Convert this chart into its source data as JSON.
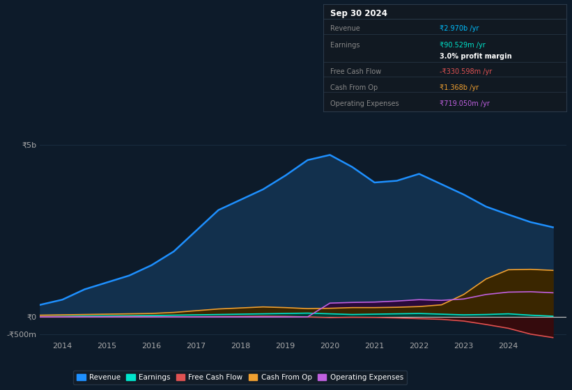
{
  "bg_color": "#0d1b2a",
  "plot_bg_color": "#0d1b2a",
  "info_box": {
    "title": "Sep 30 2024",
    "rows": [
      {
        "label": "Revenue",
        "value": "₹2.970b /yr",
        "value_color": "#00bfff"
      },
      {
        "label": "Earnings",
        "value": "₹90.529m /yr",
        "value_color": "#00e5cc"
      },
      {
        "label": "",
        "value": "3.0% profit margin",
        "value_color": "#ffffff",
        "bold": true
      },
      {
        "label": "Free Cash Flow",
        "value": "-₹330.598m /yr",
        "value_color": "#e05252"
      },
      {
        "label": "Cash From Op",
        "value": "₹1.368b /yr",
        "value_color": "#f0a030"
      },
      {
        "label": "Operating Expenses",
        "value": "₹719.050m /yr",
        "value_color": "#c060e0"
      }
    ]
  },
  "ylim": [
    -650000000.0,
    5800000000.0
  ],
  "yticks": [
    -500000000.0,
    0,
    5000000000.0
  ],
  "ytick_labels": [
    "-₹500m",
    "₹0",
    "₹5b"
  ],
  "xlim_start": 2013.5,
  "xlim_end": 2025.3,
  "xticks": [
    2014,
    2015,
    2016,
    2017,
    2018,
    2019,
    2020,
    2021,
    2022,
    2023,
    2024
  ],
  "revenue_color": "#1e90ff",
  "revenue_fill": "#12304d",
  "earnings_color": "#00e5cc",
  "earnings_fill": "#003d33",
  "fcf_color": "#e05252",
  "cashop_color": "#f0a030",
  "cashop_fill": "#3a2600",
  "opex_color": "#c060e0",
  "opex_fill": "#2a0a3a",
  "legend_labels": [
    "Revenue",
    "Earnings",
    "Free Cash Flow",
    "Cash From Op",
    "Operating Expenses"
  ],
  "legend_colors": [
    "#1e90ff",
    "#00e5cc",
    "#e05252",
    "#f0a030",
    "#c060e0"
  ],
  "grid_color": "#1a2d3f",
  "text_color": "#aaaaaa",
  "years": [
    2013.5,
    2014.0,
    2014.5,
    2015.0,
    2015.5,
    2016.0,
    2016.5,
    2017.0,
    2017.5,
    2018.0,
    2018.5,
    2019.0,
    2019.5,
    2020.0,
    2020.5,
    2021.0,
    2021.5,
    2022.0,
    2022.5,
    2023.0,
    2023.5,
    2024.0,
    2024.5,
    2025.0
  ],
  "revenue": [
    350000000.0,
    500000000.0,
    800000000.0,
    1000000000.0,
    1200000000.0,
    1500000000.0,
    1900000000.0,
    2500000000.0,
    3100000000.0,
    3400000000.0,
    3700000000.0,
    4100000000.0,
    4550000000.0,
    4700000000.0,
    4350000000.0,
    3900000000.0,
    3950000000.0,
    4150000000.0,
    3850000000.0,
    3550000000.0,
    3200000000.0,
    2970000000.0,
    2750000000.0,
    2600000000.0
  ],
  "earnings": [
    10000000.0,
    15000000.0,
    25000000.0,
    30000000.0,
    35000000.0,
    40000000.0,
    50000000.0,
    60000000.0,
    70000000.0,
    80000000.0,
    90000000.0,
    100000000.0,
    110000000.0,
    90000000.0,
    70000000.0,
    80000000.0,
    90000000.0,
    100000000.0,
    80000000.0,
    60000000.0,
    70000000.0,
    90500000.0,
    50000000.0,
    20000000.0
  ],
  "fcf": [
    10000000.0,
    5000000.0,
    0,
    5000000.0,
    10000000.0,
    5000000.0,
    0,
    5000000.0,
    10000000.0,
    15000000.0,
    20000000.0,
    15000000.0,
    0,
    -20000000.0,
    -10000000.0,
    -15000000.0,
    -30000000.0,
    -50000000.0,
    -70000000.0,
    -120000000.0,
    -220000000.0,
    -330000000.0,
    -500000000.0,
    -600000000.0
  ],
  "cashop": [
    50000000.0,
    60000000.0,
    70000000.0,
    80000000.0,
    90000000.0,
    100000000.0,
    130000000.0,
    180000000.0,
    230000000.0,
    260000000.0,
    290000000.0,
    270000000.0,
    240000000.0,
    250000000.0,
    270000000.0,
    270000000.0,
    280000000.0,
    300000000.0,
    350000000.0,
    650000000.0,
    1100000000.0,
    1368000000.0,
    1380000000.0,
    1350000000.0
  ],
  "opex": [
    0,
    0,
    0,
    0,
    0,
    0,
    0,
    0,
    0,
    0,
    0,
    0,
    0,
    400000000.0,
    420000000.0,
    430000000.0,
    460000000.0,
    500000000.0,
    480000000.0,
    520000000.0,
    650000000.0,
    719000000.0,
    730000000.0,
    700000000.0
  ]
}
